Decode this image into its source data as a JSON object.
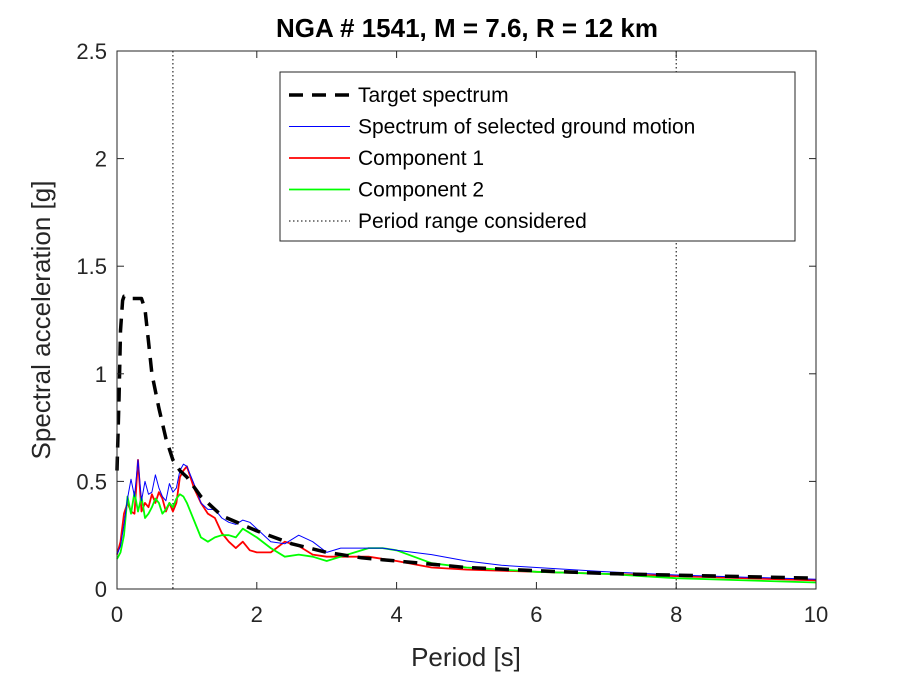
{
  "chart_data": {
    "type": "line",
    "title": "NGA # 1541, M = 7.6, R = 12 km",
    "xlabel": "Period [s]",
    "ylabel": "Spectral acceleration [g]",
    "xlim": [
      0,
      10
    ],
    "ylim": [
      0,
      2.5
    ],
    "x_ticks": [
      0,
      2,
      4,
      6,
      8,
      10
    ],
    "y_ticks": [
      0,
      0.5,
      1,
      1.5,
      2,
      2.5
    ],
    "x_tick_labels": [
      "0",
      "2",
      "4",
      "6",
      "8",
      "10"
    ],
    "y_tick_labels": [
      "0",
      "0.5",
      "1",
      "1.5",
      "2",
      "2.5"
    ],
    "grid": false,
    "legend_position": "top-right",
    "period_range": [
      0.8,
      8
    ],
    "series": [
      {
        "name": "Target spectrum",
        "color": "#000000",
        "style": "dashed",
        "x": [
          0,
          0.03,
          0.05,
          0.08,
          0.1,
          0.15,
          0.2,
          0.25,
          0.3,
          0.35,
          0.4,
          0.45,
          0.5,
          0.6,
          0.7,
          0.8,
          0.9,
          1.0,
          1.2,
          1.5,
          2.0,
          2.5,
          3.0,
          3.5,
          4.0,
          5.0,
          6.0,
          7.0,
          8.0,
          9.0,
          10.0
        ],
        "y": [
          0.55,
          0.9,
          1.2,
          1.34,
          1.36,
          1.36,
          1.35,
          1.35,
          1.35,
          1.35,
          1.3,
          1.15,
          1.0,
          0.84,
          0.7,
          0.6,
          0.55,
          0.52,
          0.43,
          0.34,
          0.27,
          0.21,
          0.17,
          0.145,
          0.13,
          0.1,
          0.085,
          0.072,
          0.064,
          0.057,
          0.05
        ]
      },
      {
        "name": "Spectrum of selected ground motion",
        "color": "#0000ff",
        "style": "solid",
        "x": [
          0,
          0.05,
          0.1,
          0.15,
          0.2,
          0.25,
          0.3,
          0.35,
          0.4,
          0.45,
          0.5,
          0.55,
          0.6,
          0.65,
          0.7,
          0.75,
          0.8,
          0.85,
          0.9,
          0.95,
          1.0,
          1.1,
          1.2,
          1.3,
          1.4,
          1.5,
          1.6,
          1.7,
          1.8,
          1.9,
          2.0,
          2.2,
          2.4,
          2.6,
          2.8,
          3.0,
          3.2,
          3.4,
          3.6,
          3.8,
          4.0,
          4.5,
          5.0,
          5.5,
          6.0,
          7.0,
          8.0,
          9.0,
          10.0
        ],
        "y": [
          0.16,
          0.2,
          0.3,
          0.42,
          0.51,
          0.43,
          0.6,
          0.41,
          0.5,
          0.44,
          0.45,
          0.53,
          0.47,
          0.43,
          0.41,
          0.49,
          0.45,
          0.47,
          0.55,
          0.58,
          0.57,
          0.49,
          0.4,
          0.37,
          0.37,
          0.33,
          0.31,
          0.3,
          0.32,
          0.31,
          0.28,
          0.22,
          0.21,
          0.25,
          0.22,
          0.17,
          0.19,
          0.19,
          0.19,
          0.19,
          0.18,
          0.16,
          0.13,
          0.11,
          0.1,
          0.08,
          0.065,
          0.055,
          0.045
        ]
      },
      {
        "name": "Component 1",
        "color": "#ff0000",
        "style": "solid",
        "x": [
          0,
          0.05,
          0.1,
          0.15,
          0.2,
          0.25,
          0.3,
          0.35,
          0.4,
          0.45,
          0.5,
          0.55,
          0.6,
          0.65,
          0.7,
          0.75,
          0.8,
          0.85,
          0.9,
          0.95,
          1.0,
          1.1,
          1.2,
          1.3,
          1.4,
          1.5,
          1.6,
          1.7,
          1.8,
          1.9,
          2.0,
          2.2,
          2.4,
          2.6,
          2.8,
          3.0,
          3.2,
          3.4,
          3.6,
          3.8,
          4.0,
          4.5,
          5.0,
          5.5,
          6.0,
          7.0,
          8.0,
          9.0,
          10.0
        ],
        "y": [
          0.16,
          0.22,
          0.35,
          0.4,
          0.36,
          0.35,
          0.6,
          0.36,
          0.4,
          0.38,
          0.44,
          0.4,
          0.45,
          0.42,
          0.36,
          0.4,
          0.36,
          0.4,
          0.52,
          0.55,
          0.57,
          0.47,
          0.4,
          0.35,
          0.33,
          0.26,
          0.22,
          0.19,
          0.22,
          0.18,
          0.17,
          0.17,
          0.22,
          0.2,
          0.16,
          0.15,
          0.15,
          0.15,
          0.15,
          0.14,
          0.13,
          0.1,
          0.09,
          0.085,
          0.08,
          0.07,
          0.06,
          0.05,
          0.04
        ]
      },
      {
        "name": "Component 2",
        "color": "#00ff00",
        "style": "solid",
        "x": [
          0,
          0.05,
          0.1,
          0.15,
          0.2,
          0.25,
          0.3,
          0.35,
          0.4,
          0.45,
          0.5,
          0.55,
          0.6,
          0.65,
          0.7,
          0.75,
          0.8,
          0.85,
          0.9,
          0.95,
          1.0,
          1.1,
          1.2,
          1.3,
          1.4,
          1.5,
          1.6,
          1.7,
          1.8,
          1.9,
          2.0,
          2.2,
          2.4,
          2.6,
          2.8,
          3.0,
          3.2,
          3.4,
          3.6,
          3.8,
          4.0,
          4.5,
          5.0,
          5.5,
          6.0,
          7.0,
          8.0,
          9.0,
          10.0
        ],
        "y": [
          0.14,
          0.17,
          0.25,
          0.43,
          0.35,
          0.45,
          0.36,
          0.43,
          0.33,
          0.35,
          0.38,
          0.42,
          0.4,
          0.35,
          0.37,
          0.4,
          0.38,
          0.42,
          0.44,
          0.43,
          0.4,
          0.32,
          0.24,
          0.22,
          0.24,
          0.25,
          0.25,
          0.24,
          0.28,
          0.26,
          0.24,
          0.19,
          0.15,
          0.16,
          0.15,
          0.13,
          0.15,
          0.17,
          0.19,
          0.19,
          0.18,
          0.12,
          0.1,
          0.09,
          0.08,
          0.07,
          0.05,
          0.04,
          0.03
        ]
      }
    ],
    "reference_lines": {
      "name": "Period range considered",
      "style": "dotted",
      "color": "#000000"
    }
  }
}
